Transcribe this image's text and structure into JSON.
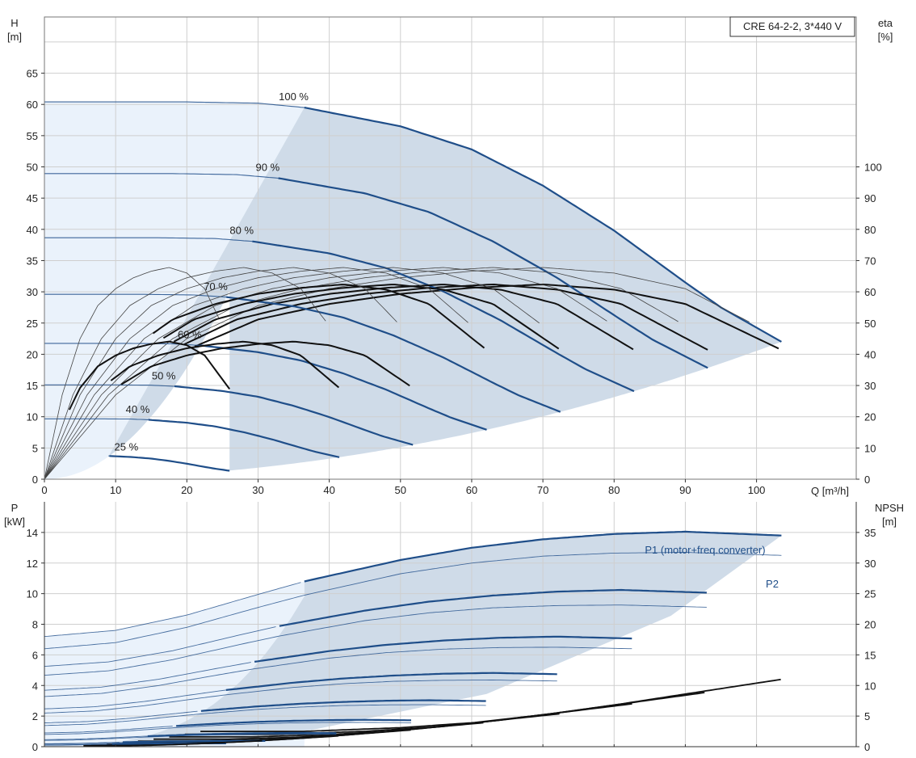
{
  "model_label": "CRE 64-2-2, 3*440 V",
  "colors": {
    "pump_curve": "#1f4e89",
    "efficiency_curve": "#111111",
    "thin_curve": "#444444",
    "region_full": "#cfdbe8",
    "region_light": "#eaf2fb",
    "label_blue": "#1f4e89"
  },
  "chart_data": [
    {
      "type": "line",
      "name_label": "",
      "xlabel": "Q [m³/h]",
      "ylabel": "H\n[m]",
      "y2label": "eta\n[%]",
      "xlim": [
        0,
        114
      ],
      "ylim": [
        0,
        74
      ],
      "y2lim": [
        0,
        148
      ],
      "x_ticks": [
        0,
        10,
        20,
        30,
        40,
        50,
        60,
        70,
        80,
        90,
        100
      ],
      "y_ticks": [
        0,
        5,
        10,
        15,
        20,
        25,
        30,
        35,
        40,
        45,
        50,
        55,
        60,
        65
      ],
      "y2_ticks": [
        0,
        10,
        20,
        30,
        40,
        50,
        60,
        70,
        80,
        90,
        100
      ],
      "grid": true,
      "speed_curves": [
        {
          "label": "100 %",
          "speed": 1.0
        },
        {
          "label": "90 %",
          "speed": 0.9
        },
        {
          "label": "80 %",
          "speed": 0.8
        },
        {
          "label": "70 %",
          "speed": 0.7
        },
        {
          "label": "60 %",
          "speed": 0.6
        },
        {
          "label": "50 %",
          "speed": 0.5
        },
        {
          "label": "40 %",
          "speed": 0.4
        },
        {
          "label": "25 %",
          "speed": 0.25
        }
      ],
      "head_curve_100": {
        "Q": [
          0,
          10,
          20,
          30,
          36.5,
          50,
          60,
          70,
          80,
          90,
          95,
          103.5
        ],
        "H": [
          60.4,
          60.4,
          60.4,
          60.2,
          59.5,
          56.5,
          52.8,
          47.0,
          39.8,
          31.5,
          27.5,
          22.0
        ]
      },
      "efficiency_curve_100": {
        "Q": [
          0,
          10,
          20,
          30,
          40,
          50,
          60,
          70,
          80,
          90,
          103.5
        ],
        "eta": [
          0,
          27.0,
          45.0,
          55.6,
          61.0,
          64.5,
          66.6,
          67.8,
          66.0,
          61.0,
          45.0
        ]
      },
      "operating_range_min_flow_at_100": 36.5,
      "operating_range_start_25": 26.0,
      "operating_range_max_flow_at_100": 103.5
    },
    {
      "type": "line",
      "xlabel": "",
      "ylabel": "P\n[kW]",
      "y2label": "NPSH\n[m]",
      "xlim": [
        0,
        114
      ],
      "ylim": [
        0,
        16
      ],
      "y2lim": [
        0,
        40
      ],
      "x_ticks": [
        0,
        10,
        20,
        30,
        40,
        50,
        60,
        70,
        80,
        90,
        100
      ],
      "y_ticks": [
        0,
        2,
        4,
        6,
        8,
        10,
        12,
        14
      ],
      "y2_ticks": [
        0,
        5,
        10,
        15,
        20,
        25,
        30,
        35
      ],
      "grid": true,
      "series": [
        {
          "name": "P1 (motor+freq.converter)",
          "Q": [
            0,
            10,
            20,
            30,
            36.5,
            50,
            60,
            70,
            80,
            90,
            103.5
          ],
          "P": [
            7.2,
            7.6,
            8.6,
            9.95,
            10.8,
            12.2,
            13.0,
            13.55,
            13.9,
            14.05,
            13.8
          ]
        },
        {
          "name": "P2",
          "Q": [
            0,
            10,
            20,
            30,
            36.5,
            50,
            60,
            70,
            80,
            90,
            103.5
          ],
          "P": [
            6.4,
            6.8,
            7.8,
            9.1,
            9.9,
            11.3,
            12.0,
            12.45,
            12.65,
            12.7,
            12.5
          ]
        },
        {
          "name": "",
          "Q": [
            36.5,
            50,
            60,
            70,
            80,
            90,
            103.5
          ],
          "NPSH": [
            2.5,
            3.1,
            3.9,
            5.2,
            6.8,
            8.6,
            11.0
          ]
        }
      ]
    }
  ]
}
